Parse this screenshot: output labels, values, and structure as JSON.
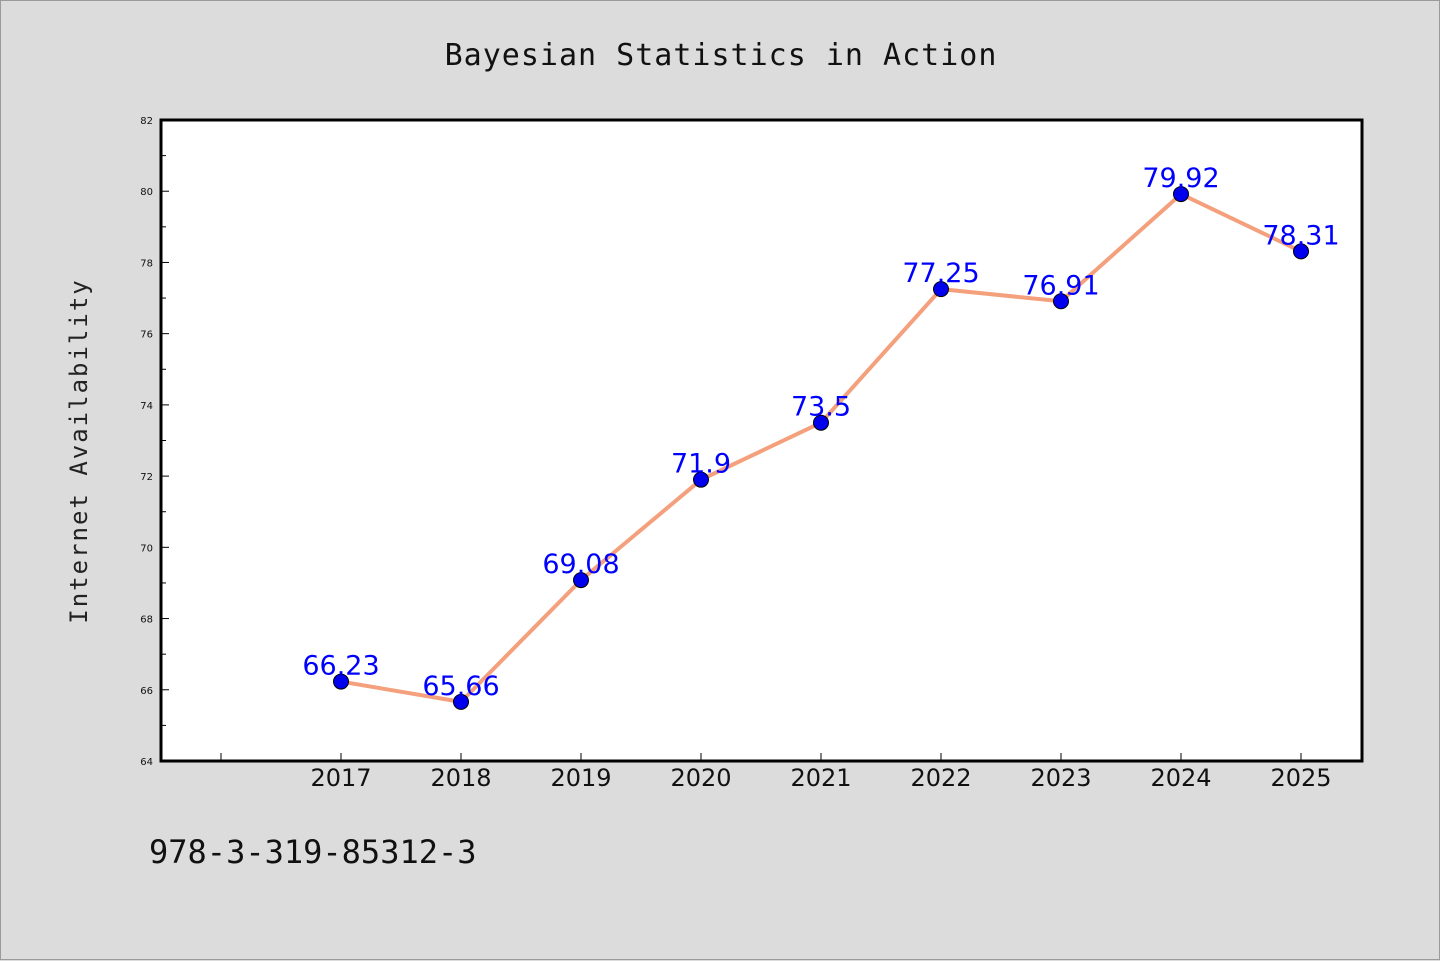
{
  "chart_data": {
    "type": "line",
    "title": "Bayesian Statistics in Action",
    "ylabel": "Internet Availability",
    "xlabel": "",
    "categories": [
      "2017",
      "2018",
      "2019",
      "2020",
      "2021",
      "2022",
      "2023",
      "2024",
      "2025"
    ],
    "series": [
      {
        "values": [
          66.23,
          65.66,
          69.08,
          71.9,
          73.5,
          77.25,
          76.91,
          79.92,
          78.31
        ],
        "labels": [
          "66.23",
          "65.66",
          "69.08",
          "71.9",
          "73.5",
          "77.25",
          "76.91",
          "79.92",
          "78.31"
        ],
        "line_color": "#f4a07c",
        "marker_color": "#0000ee"
      }
    ],
    "ylim": [
      64,
      82
    ],
    "yticks": [
      "64",
      "66",
      "68",
      "70",
      "72",
      "74",
      "76",
      "78",
      "80",
      "82"
    ],
    "grid": false,
    "legend": "none"
  },
  "footer": {
    "isbn": "978-3-319-85312-3"
  }
}
